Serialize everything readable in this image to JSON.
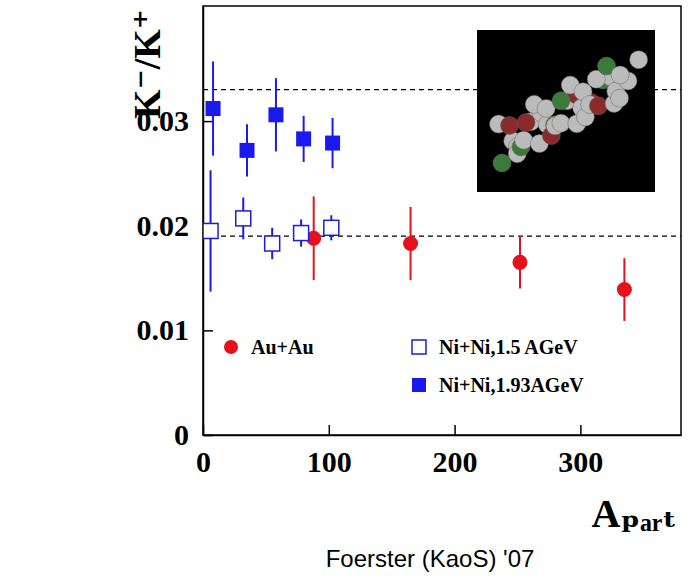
{
  "chart_data": {
    "type": "scatter",
    "y_label": "K⁻/K⁺",
    "x_label": "Aₚₐᵣₜ",
    "caption": "Foerster (KaoS) '07",
    "xlim": [
      0,
      380
    ],
    "ylim": [
      0,
      0.041
    ],
    "xticks": [
      0,
      100,
      200,
      300
    ],
    "yticks": [
      0,
      0.01,
      0.02,
      0.03
    ],
    "reference_lines": [
      0.033,
      0.019
    ],
    "legend": "lower right",
    "series": [
      {
        "name": "Au+Au",
        "color": "#e8101a",
        "marker": "circle",
        "x": [
          88,
          165,
          252,
          335
        ],
        "values": [
          0.0188,
          0.0183,
          0.0165,
          0.0139
        ],
        "errors": [
          0.004,
          0.0035,
          0.0025,
          0.003
        ]
      },
      {
        "name": "Ni+Ni,1.5 AGeV",
        "color": "#1a1aee",
        "marker": "square-open",
        "x": [
          6,
          32,
          55,
          78,
          102
        ],
        "values": [
          0.0195,
          0.0207,
          0.0183,
          0.0193,
          0.0198
        ],
        "errors": [
          0.0058,
          0.002,
          0.0015,
          0.0013,
          0.0012
        ]
      },
      {
        "name": "Ni+Ni,1.93AGeV",
        "color": "#1a1aee",
        "marker": "square",
        "x": [
          8,
          35,
          58,
          80,
          103
        ],
        "values": [
          0.0312,
          0.0272,
          0.0306,
          0.0283,
          0.0279
        ],
        "errors": [
          0.0045,
          0.0025,
          0.0035,
          0.0022,
          0.0024
        ]
      }
    ]
  }
}
